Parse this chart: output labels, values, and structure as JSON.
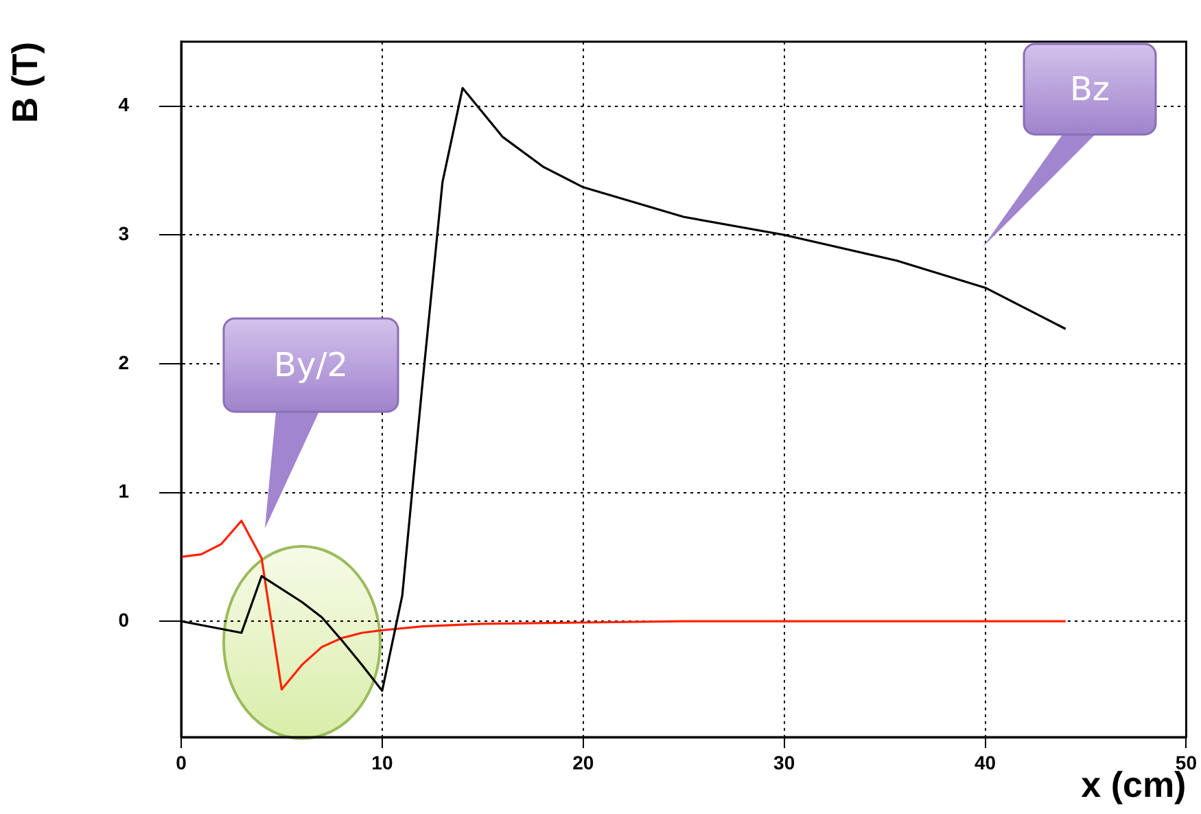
{
  "chart_data": {
    "type": "line",
    "xlabel": "x (cm)",
    "ylabel": "B (T)",
    "xlim": [
      0,
      50
    ],
    "xticks": [
      0,
      10,
      20,
      30,
      40,
      50
    ],
    "ylim": [
      -0.9,
      4.5
    ],
    "yticks": [
      0,
      1,
      2,
      3,
      4
    ],
    "grid": true,
    "legend": false,
    "marker": "none",
    "line_style": "solid",
    "series": [
      {
        "name": "Bz",
        "color": "#000000",
        "x": [
          0,
          1,
          3,
          4,
          6,
          7,
          8,
          9,
          10,
          11,
          12,
          13,
          14,
          16,
          18,
          20,
          25,
          30,
          35.6,
          40,
          44
        ],
        "values": [
          0,
          -0.03,
          -0.09,
          0.35,
          0.15,
          0.03,
          -0.15,
          -0.34,
          -0.54,
          0.2,
          1.84,
          3.41,
          4.14,
          3.76,
          3.53,
          3.37,
          3.14,
          3.0,
          2.8,
          2.59,
          2.27
        ]
      },
      {
        "name": "By/2",
        "color": "#ff2200",
        "x": [
          0,
          1,
          2,
          3,
          4,
          5,
          6,
          7,
          8,
          9,
          10,
          12,
          15,
          20,
          25,
          30,
          35,
          40,
          44
        ],
        "values": [
          0.5,
          0.52,
          0.6,
          0.78,
          0.49,
          -0.53,
          -0.34,
          -0.2,
          -0.13,
          -0.09,
          -0.07,
          -0.04,
          -0.02,
          -0.01,
          0,
          0,
          0,
          0,
          0
        ]
      }
    ]
  }
}
